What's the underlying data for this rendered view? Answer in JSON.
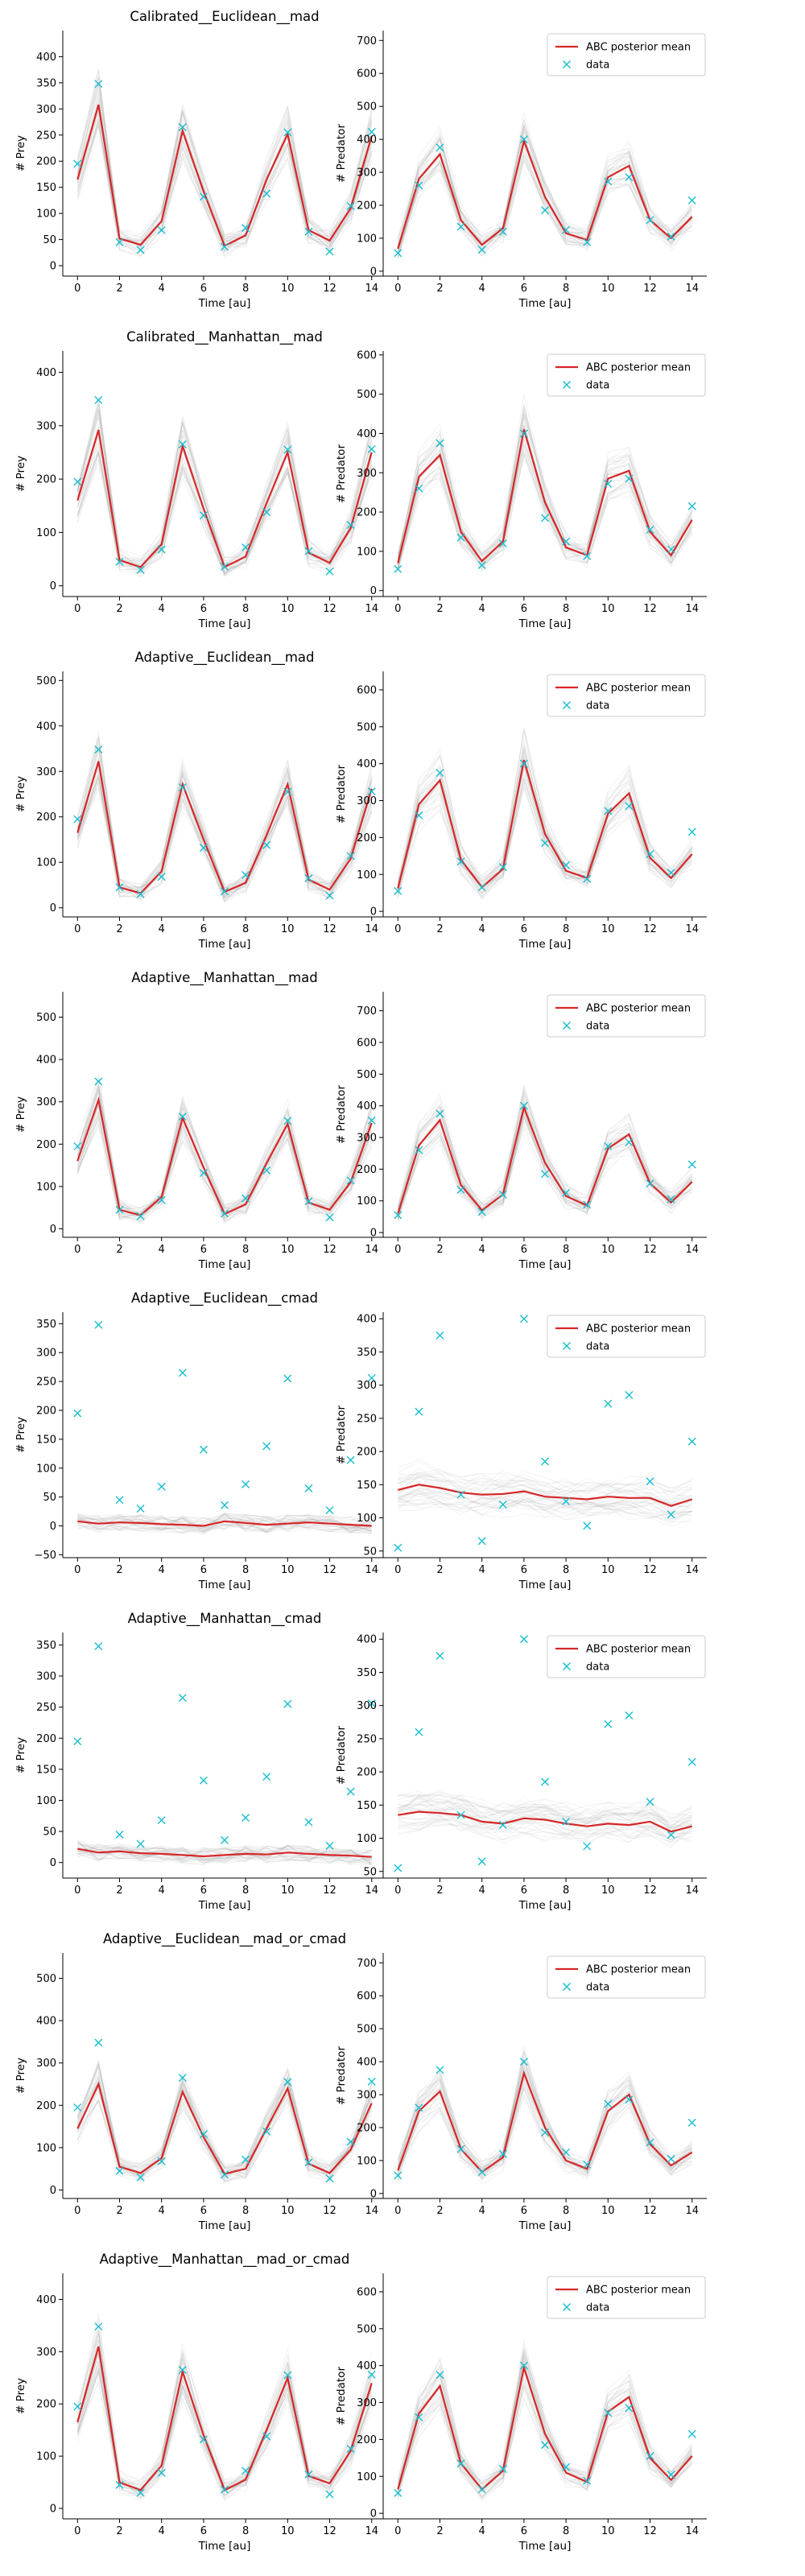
{
  "figure": {
    "data_x": [
      0,
      1,
      2,
      3,
      4,
      5,
      6,
      7,
      8,
      9,
      10,
      11,
      12,
      13,
      14
    ],
    "data_prey": [
      195,
      348,
      45,
      30,
      68,
      265,
      132,
      36,
      72,
      138,
      255,
      65,
      27,
      114,
      256
    ],
    "data_predator": [
      55,
      260,
      375,
      135,
      65,
      120,
      400,
      185,
      125,
      88,
      272,
      285,
      155,
      105,
      215
    ],
    "legend": {
      "mean_label": "ABC posterior mean",
      "data_label": "data"
    },
    "colors": {
      "mean": "#d62728",
      "data": "#17becf",
      "samples": "#9a9a9a"
    }
  },
  "chart_data": [
    {
      "type": "line",
      "title": "Calibrated__Euclidean__mad",
      "xlabel": "Time [au]",
      "ylabel": "# Prey",
      "xlim": [
        -0.7,
        14.7
      ],
      "ylim": [
        -20,
        450
      ],
      "xticks": [
        0,
        2,
        4,
        6,
        8,
        10,
        12,
        14
      ],
      "yticks": [
        0,
        50,
        100,
        150,
        200,
        250,
        300,
        350,
        400
      ],
      "series": [
        {
          "values": [
            165,
            308,
            52,
            40,
            85,
            258,
            142,
            38,
            58,
            165,
            252,
            68,
            48,
            110,
            248
          ]
        }
      ]
    },
    {
      "type": "line",
      "title": "",
      "xlabel": "Time [au]",
      "ylabel": "# Predator",
      "xlim": [
        -0.7,
        14.7
      ],
      "ylim": [
        -15,
        730
      ],
      "xticks": [
        0,
        2,
        4,
        6,
        8,
        10,
        12,
        14
      ],
      "yticks": [
        0,
        100,
        200,
        300,
        400,
        500,
        600,
        700
      ],
      "legend": "upper right",
      "series": [
        {
          "name": "ABC posterior mean",
          "values": [
            68,
            280,
            355,
            155,
            80,
            130,
            395,
            225,
            115,
            95,
            285,
            320,
            155,
            100,
            165
          ]
        },
        {
          "name": "data"
        }
      ]
    },
    {
      "type": "line",
      "title": "Calibrated__Manhattan__mad",
      "xlabel": "Time [au]",
      "ylabel": "# Prey",
      "xlim": [
        -0.7,
        14.7
      ],
      "ylim": [
        -20,
        440
      ],
      "xticks": [
        0,
        2,
        4,
        6,
        8,
        10,
        12,
        14
      ],
      "yticks": [
        0,
        100,
        200,
        300,
        400
      ],
      "series": [
        {
          "values": [
            160,
            292,
            48,
            35,
            78,
            262,
            145,
            35,
            55,
            155,
            250,
            62,
            43,
            108,
            250
          ]
        }
      ]
    },
    {
      "type": "line",
      "title": "",
      "xlabel": "Time [au]",
      "ylabel": "# Predator",
      "xlim": [
        -0.7,
        14.7
      ],
      "ylim": [
        -15,
        610
      ],
      "xticks": [
        0,
        2,
        4,
        6,
        8,
        10,
        12,
        14
      ],
      "yticks": [
        0,
        100,
        200,
        300,
        400,
        500,
        600
      ],
      "legend": "upper right",
      "series": [
        {
          "name": "ABC posterior mean",
          "values": [
            70,
            290,
            345,
            150,
            75,
            125,
            410,
            225,
            110,
            90,
            285,
            305,
            150,
            90,
            180
          ]
        },
        {
          "name": "data"
        }
      ]
    },
    {
      "type": "line",
      "title": "Adaptive__Euclidean__mad",
      "xlabel": "Time [au]",
      "ylabel": "# Prey",
      "xlim": [
        -0.7,
        14.7
      ],
      "ylim": [
        -20,
        520
      ],
      "xticks": [
        0,
        2,
        4,
        6,
        8,
        10,
        12,
        14
      ],
      "yticks": [
        0,
        100,
        200,
        300,
        400,
        500
      ],
      "series": [
        {
          "values": [
            165,
            322,
            45,
            32,
            80,
            272,
            150,
            35,
            55,
            160,
            272,
            62,
            40,
            108,
            262
          ]
        }
      ]
    },
    {
      "type": "line",
      "title": "",
      "xlabel": "Time [au]",
      "ylabel": "# Predator",
      "xlim": [
        -0.7,
        14.7
      ],
      "ylim": [
        -15,
        650
      ],
      "xticks": [
        0,
        2,
        4,
        6,
        8,
        10,
        12,
        14
      ],
      "yticks": [
        0,
        100,
        200,
        300,
        400,
        500,
        600
      ],
      "legend": "upper right",
      "series": [
        {
          "name": "ABC posterior mean",
          "values": [
            62,
            290,
            355,
            140,
            65,
            115,
            410,
            210,
            110,
            90,
            265,
            320,
            145,
            90,
            155
          ]
        },
        {
          "name": "data"
        }
      ]
    },
    {
      "type": "line",
      "title": "Adaptive__Manhattan__mad",
      "xlabel": "Time [au]",
      "ylabel": "# Prey",
      "xlim": [
        -0.7,
        14.7
      ],
      "ylim": [
        -20,
        560
      ],
      "xticks": [
        0,
        2,
        4,
        6,
        8,
        10,
        12,
        14
      ],
      "yticks": [
        0,
        100,
        200,
        300,
        400,
        500
      ],
      "series": [
        {
          "values": [
            160,
            305,
            45,
            32,
            75,
            262,
            145,
            35,
            58,
            155,
            248,
            62,
            45,
            110,
            250
          ]
        }
      ]
    },
    {
      "type": "line",
      "title": "",
      "xlabel": "Time [au]",
      "ylabel": "# Predator",
      "xlim": [
        -0.7,
        14.7
      ],
      "ylim": [
        -15,
        760
      ],
      "xticks": [
        0,
        2,
        4,
        6,
        8,
        10,
        12,
        14
      ],
      "yticks": [
        0,
        100,
        200,
        300,
        400,
        500,
        600,
        700
      ],
      "legend": "upper right",
      "series": [
        {
          "name": "ABC posterior mean",
          "values": [
            60,
            275,
            355,
            150,
            70,
            120,
            395,
            220,
            115,
            85,
            265,
            310,
            155,
            95,
            160
          ]
        },
        {
          "name": "data"
        }
      ]
    },
    {
      "type": "line",
      "title": "Adaptive__Euclidean__cmad",
      "xlabel": "Time [au]",
      "ylabel": "# Prey",
      "xlim": [
        -0.7,
        14.7
      ],
      "ylim": [
        -55,
        370
      ],
      "xticks": [
        0,
        2,
        4,
        6,
        8,
        10,
        12,
        14
      ],
      "yticks": [
        -50,
        0,
        50,
        100,
        150,
        200,
        250,
        300,
        350
      ],
      "series": [
        {
          "values": [
            8,
            4,
            6,
            5,
            3,
            2,
            0,
            8,
            5,
            2,
            4,
            6,
            4,
            2,
            0
          ]
        }
      ]
    },
    {
      "type": "line",
      "title": "",
      "xlabel": "Time [au]",
      "ylabel": "# Predator",
      "xlim": [
        -0.7,
        14.7
      ],
      "ylim": [
        40,
        410
      ],
      "xticks": [
        0,
        2,
        4,
        6,
        8,
        10,
        12,
        14
      ],
      "yticks": [
        50,
        100,
        150,
        200,
        250,
        300,
        350,
        400
      ],
      "legend": "upper right",
      "series": [
        {
          "name": "ABC posterior mean",
          "values": [
            142,
            150,
            145,
            138,
            135,
            136,
            140,
            132,
            130,
            128,
            132,
            130,
            130,
            118,
            128
          ]
        },
        {
          "name": "data"
        }
      ]
    },
    {
      "type": "line",
      "title": "Adaptive__Manhattan__cmad",
      "xlabel": "Time [au]",
      "ylabel": "# Prey",
      "xlim": [
        -0.7,
        14.7
      ],
      "ylim": [
        -25,
        370
      ],
      "xticks": [
        0,
        2,
        4,
        6,
        8,
        10,
        12,
        14
      ],
      "yticks": [
        0,
        50,
        100,
        150,
        200,
        250,
        300,
        350
      ],
      "series": [
        {
          "values": [
            22,
            16,
            18,
            15,
            14,
            12,
            10,
            12,
            14,
            13,
            16,
            14,
            12,
            11,
            9
          ]
        }
      ]
    },
    {
      "type": "line",
      "title": "",
      "xlabel": "Time [au]",
      "ylabel": "# Predator",
      "xlim": [
        -0.7,
        14.7
      ],
      "ylim": [
        40,
        410
      ],
      "xticks": [
        0,
        2,
        4,
        6,
        8,
        10,
        12,
        14
      ],
      "yticks": [
        50,
        100,
        150,
        200,
        250,
        300,
        350,
        400
      ],
      "legend": "upper right",
      "series": [
        {
          "name": "ABC posterior mean",
          "values": [
            135,
            140,
            138,
            135,
            125,
            122,
            130,
            128,
            122,
            118,
            122,
            120,
            125,
            110,
            118
          ]
        },
        {
          "name": "data"
        }
      ]
    },
    {
      "type": "line",
      "title": "Adaptive__Euclidean__mad_or_cmad",
      "xlabel": "Time [au]",
      "ylabel": "# Prey",
      "xlim": [
        -0.7,
        14.7
      ],
      "ylim": [
        -20,
        560
      ],
      "xticks": [
        0,
        2,
        4,
        6,
        8,
        10,
        12,
        14
      ],
      "yticks": [
        0,
        100,
        200,
        300,
        400,
        500
      ],
      "series": [
        {
          "values": [
            145,
            250,
            55,
            40,
            75,
            232,
            125,
            38,
            50,
            145,
            240,
            62,
            40,
            95,
            205
          ]
        }
      ]
    },
    {
      "type": "line",
      "title": "",
      "xlabel": "Time [au]",
      "ylabel": "# Predator",
      "xlim": [
        -0.7,
        14.7
      ],
      "ylim": [
        -15,
        730
      ],
      "xticks": [
        0,
        2,
        4,
        6,
        8,
        10,
        12,
        14
      ],
      "yticks": [
        0,
        100,
        200,
        300,
        400,
        500,
        600,
        700
      ],
      "legend": "upper right",
      "series": [
        {
          "name": "ABC posterior mean",
          "values": [
            70,
            250,
            310,
            135,
            65,
            110,
            365,
            200,
            100,
            75,
            250,
            300,
            150,
            85,
            125
          ]
        },
        {
          "name": "data"
        }
      ]
    },
    {
      "type": "line",
      "title": "Adaptive__Manhattan__mad_or_cmad",
      "xlabel": "Time [au]",
      "ylabel": "# Prey",
      "xlim": [
        -0.7,
        14.7
      ],
      "ylim": [
        -20,
        450
      ],
      "xticks": [
        0,
        2,
        4,
        6,
        8,
        10,
        12,
        14
      ],
      "yticks": [
        0,
        100,
        200,
        300,
        400
      ],
      "series": [
        {
          "values": [
            165,
            310,
            50,
            35,
            82,
            262,
            140,
            35,
            55,
            150,
            250,
            62,
            48,
            110,
            240
          ]
        }
      ]
    },
    {
      "type": "line",
      "title": "",
      "xlabel": "Time [au]",
      "ylabel": "# Predator",
      "xlim": [
        -0.7,
        14.7
      ],
      "ylim": [
        -15,
        650
      ],
      "xticks": [
        0,
        2,
        4,
        6,
        8,
        10,
        12,
        14
      ],
      "yticks": [
        0,
        100,
        200,
        300,
        400,
        500,
        600
      ],
      "legend": "upper right",
      "series": [
        {
          "name": "ABC posterior mean",
          "values": [
            65,
            270,
            345,
            135,
            65,
            115,
            395,
            215,
            110,
            85,
            275,
            315,
            150,
            90,
            155
          ]
        },
        {
          "name": "data"
        }
      ]
    }
  ]
}
